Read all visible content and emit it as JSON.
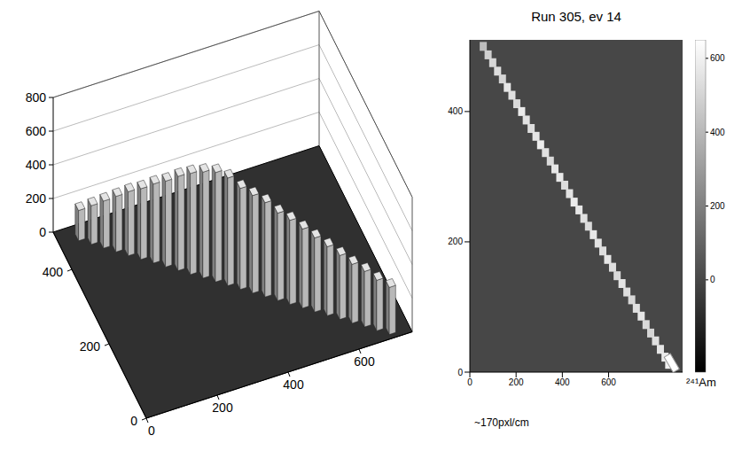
{
  "chart_data": [
    {
      "type": "bar3d",
      "xlim": [
        0,
        750
      ],
      "xticks": [
        0,
        200,
        400,
        600
      ],
      "ylim": [
        0,
        500
      ],
      "yticks": [
        0,
        200,
        400
      ],
      "zlim": [
        0,
        800
      ],
      "zticks": [
        0,
        200,
        400,
        600,
        800
      ],
      "bars": {
        "x": [
          60,
          86,
          111,
          137,
          162,
          188,
          214,
          239,
          265,
          290,
          316,
          342,
          367,
          393,
          418,
          444,
          470,
          495,
          521,
          546,
          572,
          598,
          623,
          649,
          674,
          700
        ],
        "y": [
          470,
          452,
          434,
          416,
          398,
          380,
          362,
          344,
          326,
          308,
          290,
          272,
          254,
          236,
          218,
          200,
          182,
          164,
          146,
          128,
          110,
          92,
          74,
          56,
          38,
          20
        ],
        "z": [
          180,
          230,
          280,
          330,
          380,
          420,
          470,
          510,
          560,
          600,
          630,
          650,
          640,
          600,
          580,
          560,
          520,
          500,
          470,
          440,
          410,
          380,
          350,
          330,
          300,
          280
        ]
      }
    },
    {
      "type": "heatmap",
      "title": "Run 305, ev 14",
      "xlim": [
        0,
        920
      ],
      "xticks": [
        0,
        200,
        400,
        600
      ],
      "ylim": [
        0,
        510
      ],
      "yticks": [
        0,
        200,
        400
      ],
      "cells": {
        "x": [
          58,
          79,
          99,
          120,
          141,
          162,
          182,
          203,
          224,
          244,
          265,
          286,
          306,
          327,
          348,
          368,
          389,
          410,
          431,
          451,
          472,
          493,
          513,
          534,
          555,
          575,
          596,
          617,
          637,
          658,
          679,
          700,
          720,
          741,
          762,
          782,
          803,
          824,
          844,
          860
        ],
        "y": [
          500,
          487,
          475,
          462,
          450,
          437,
          425,
          412,
          400,
          387,
          374,
          362,
          349,
          337,
          324,
          312,
          299,
          287,
          274,
          261,
          249,
          236,
          224,
          211,
          198,
          186,
          173,
          161,
          148,
          136,
          123,
          111,
          98,
          86,
          73,
          60,
          48,
          35,
          23,
          12
        ],
        "values": [
          420,
          480,
          510,
          530,
          500,
          560,
          540,
          520,
          580,
          550,
          530,
          560,
          590,
          540,
          520,
          560,
          570,
          530,
          550,
          580,
          560,
          540,
          520,
          570,
          550,
          530,
          560,
          540,
          520,
          550,
          530,
          510,
          540,
          560,
          520,
          500,
          540,
          560,
          580,
          600
        ]
      },
      "colorbar": {
        "range": [
          -250,
          650
        ],
        "ticks": [
          0,
          200,
          400,
          600
        ]
      },
      "source": {
        "x": 873,
        "y": 14,
        "label": "²⁴¹Am"
      },
      "annotations": [
        "~170pxl/cm"
      ]
    }
  ]
}
